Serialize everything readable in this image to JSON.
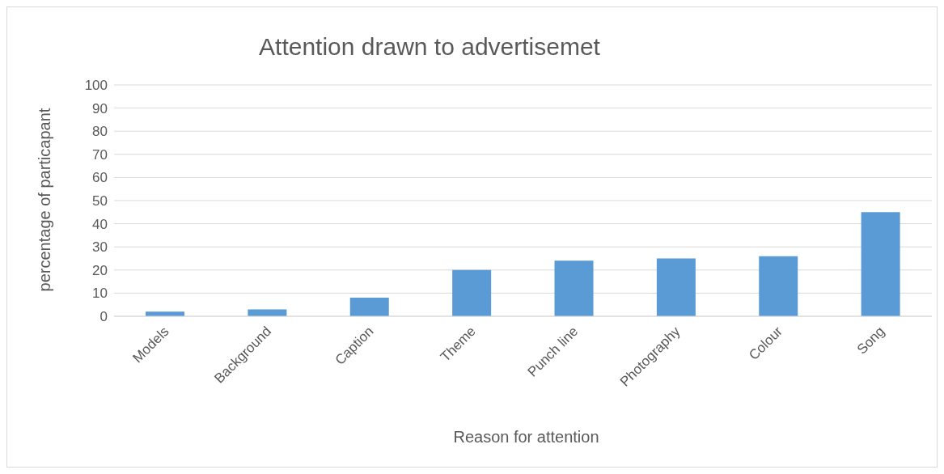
{
  "chart_data": {
    "type": "bar",
    "title": "Attention drawn to advertisemet",
    "xlabel": "Reason for attention",
    "ylabel": "percentage of particapant",
    "categories": [
      "Models",
      "Background",
      "Caption",
      "Theme",
      "Punch line",
      "Photography",
      "Colour",
      "Song"
    ],
    "values": [
      2,
      3,
      8,
      20,
      24,
      25,
      26,
      45
    ],
    "color": "#5b9bd5",
    "ylim": [
      0,
      100
    ],
    "yticks": [
      0,
      10,
      20,
      30,
      40,
      50,
      60,
      70,
      80,
      90,
      100
    ],
    "grid": "y"
  }
}
